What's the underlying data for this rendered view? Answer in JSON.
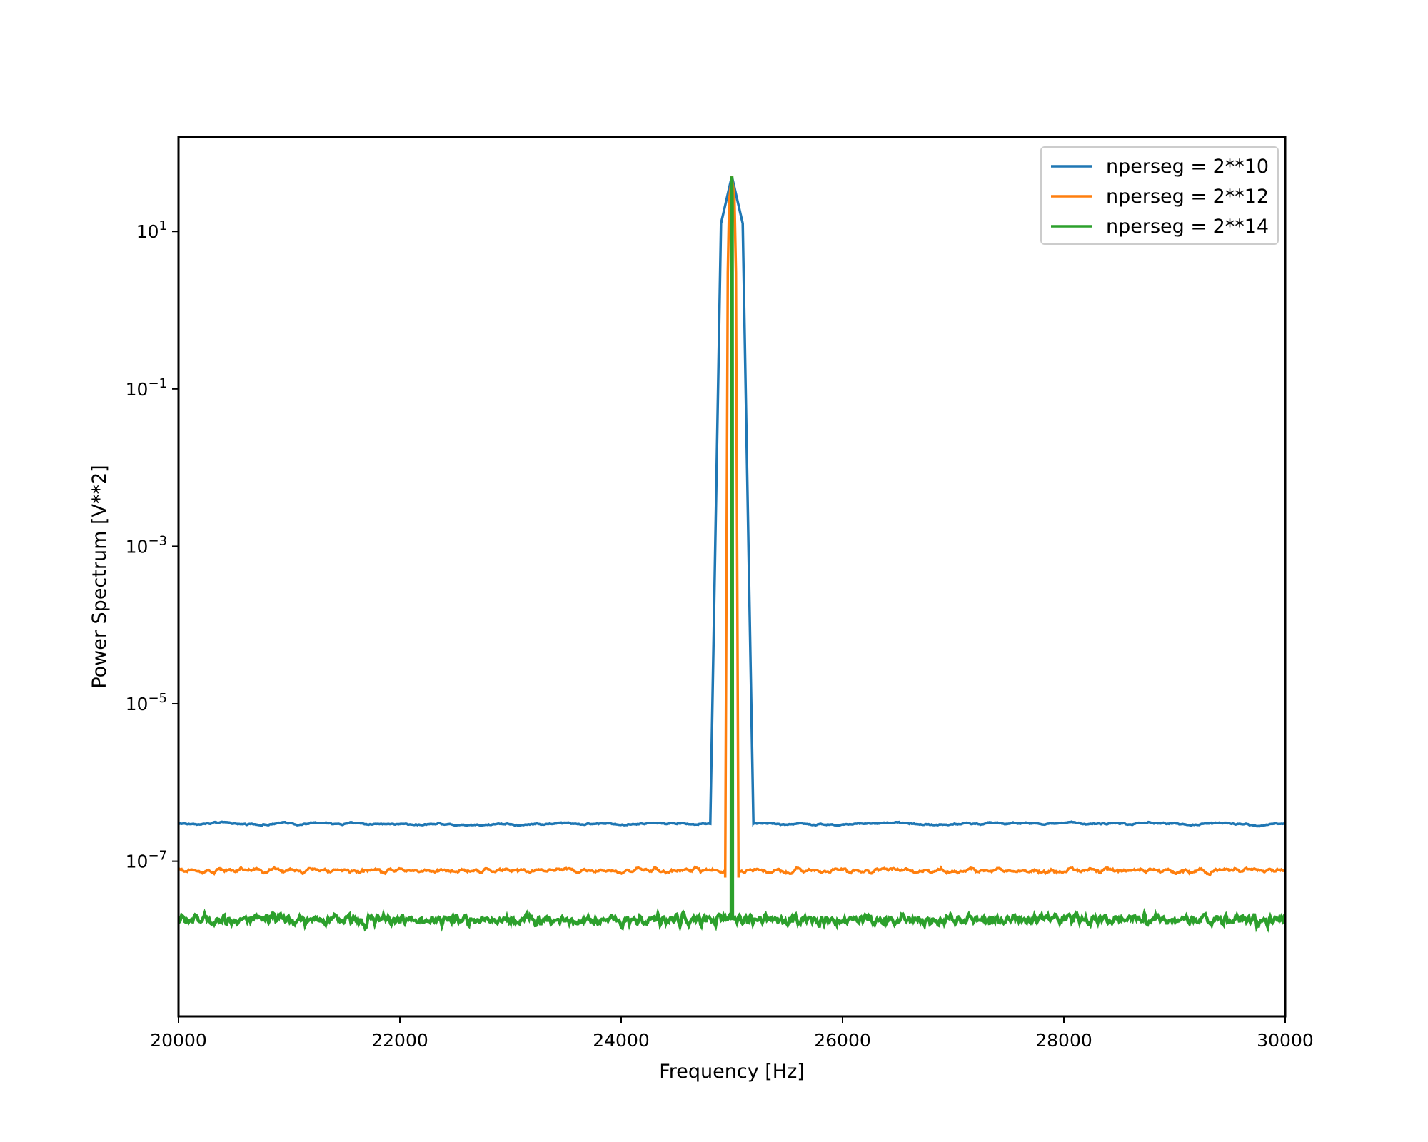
{
  "chart_data": {
    "type": "line",
    "title": "",
    "xlabel": "Frequency [Hz]",
    "ylabel": "Power Spectrum [V**2]",
    "xscale": "linear",
    "yscale": "log",
    "xlim": [
      20000,
      30000
    ],
    "ylim": [
      1.07e-09,
      158
    ],
    "xticks": [
      20000,
      22000,
      24000,
      26000,
      28000,
      30000
    ],
    "xtick_labels": [
      "20000",
      "22000",
      "24000",
      "26000",
      "28000",
      "30000"
    ],
    "yticks": [
      10,
      0.1,
      0.001,
      1e-05,
      1e-07
    ],
    "ytick_labels": [
      {
        "base": "10",
        "exp": "1"
      },
      {
        "base": "10",
        "exp": "−1"
      },
      {
        "base": "10",
        "exp": "−3"
      },
      {
        "base": "10",
        "exp": "−5"
      },
      {
        "base": "10",
        "exp": "−7"
      }
    ],
    "grid": false,
    "legend_position": "upper right",
    "series": [
      {
        "name": "nperseg = 2**10",
        "color": "#1f77b4",
        "baseline": 3e-07,
        "noise_decades": 0.035,
        "noise_smooth": 40,
        "peak": [
          {
            "x": 24805,
            "y": 3e-07
          },
          {
            "x": 24902,
            "y": 12.6
          },
          {
            "x": 25000,
            "y": 50
          },
          {
            "x": 25098,
            "y": 12.6
          },
          {
            "x": 25195,
            "y": 3e-07
          }
        ]
      },
      {
        "name": "nperseg = 2**12",
        "color": "#ff7f0e",
        "baseline": 7.6e-08,
        "noise_decades": 0.05,
        "noise_smooth": 10,
        "peak": [
          {
            "x": 24940,
            "y": 6.2e-08
          },
          {
            "x": 24951,
            "y": 0.0003
          },
          {
            "x": 24963,
            "y": 3.0
          },
          {
            "x": 24976,
            "y": 25
          },
          {
            "x": 25000,
            "y": 50
          },
          {
            "x": 25024,
            "y": 25
          },
          {
            "x": 25037,
            "y": 3.0
          },
          {
            "x": 25049,
            "y": 0.0003
          },
          {
            "x": 25060,
            "y": 6.2e-08
          }
        ]
      },
      {
        "name": "nperseg = 2**14",
        "color": "#2ca02c",
        "baseline": 1.8e-08,
        "noise_decades": 0.1,
        "noise_smooth": 2,
        "peak": [
          {
            "x": 24994,
            "y": 1.8e-08
          },
          {
            "x": 24997,
            "y": 20
          },
          {
            "x": 25000,
            "y": 50
          },
          {
            "x": 25003,
            "y": 20
          },
          {
            "x": 25006,
            "y": 1.8e-08
          }
        ]
      }
    ]
  }
}
